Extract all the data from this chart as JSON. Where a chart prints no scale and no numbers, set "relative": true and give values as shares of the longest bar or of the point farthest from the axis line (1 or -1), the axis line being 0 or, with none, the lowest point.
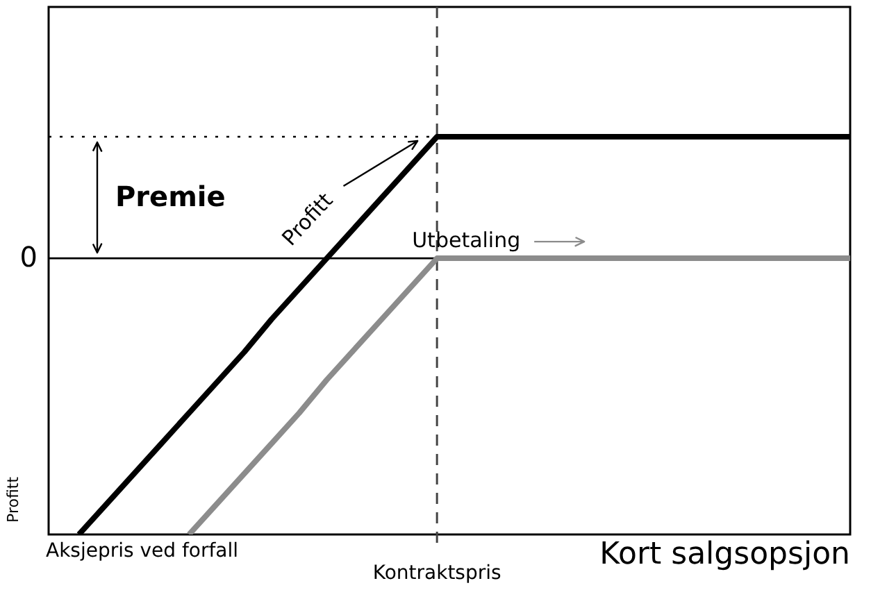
{
  "chart_data": {
    "type": "line",
    "title": "Kort salgsopsjon",
    "xlabel": "Aksjepris ved forfall",
    "ylabel": "Profitt",
    "relative": true,
    "categories": [
      null,
      null,
      null,
      null,
      null,
      null,
      null,
      null,
      null,
      null,
      null,
      null,
      null,
      null,
      null,
      null,
      null,
      null,
      null,
      null,
      null,
      null,
      null,
      null,
      null,
      null,
      null,
      null,
      null
    ],
    "series": [
      {
        "name": "Profitt",
        "color": "#000000",
        "values": [
          -1,
          -0.89,
          -0.78,
          -0.67,
          -0.56,
          -0.45,
          -0.34,
          -0.22,
          -0.11,
          0,
          0.11,
          0.22,
          0.33,
          0.44,
          0.44,
          0.44,
          0.44,
          0.44,
          0.44,
          0.44,
          0.44,
          0.44,
          0.44,
          0.44,
          0.44,
          0.44,
          0.44,
          0.44,
          0.44
        ]
      },
      {
        "name": "Utbetaling",
        "color": "#8c8c8c",
        "values": [
          null,
          null,
          null,
          null,
          -1,
          -0.89,
          -0.78,
          -0.67,
          -0.56,
          -0.44,
          -0.33,
          -0.22,
          -0.11,
          0,
          0,
          0,
          0,
          0,
          0,
          0,
          0,
          0,
          0,
          0,
          0,
          0,
          0,
          0,
          0
        ]
      }
    ],
    "ref_lines": [
      {
        "axis": "y",
        "value": 0,
        "label": "0",
        "line_style": "solid"
      },
      {
        "axis": "y",
        "value": 0.44,
        "label": null,
        "line_style": "dotted"
      }
    ],
    "annotations": [
      "Kontraktspris",
      "Premie"
    ]
  }
}
